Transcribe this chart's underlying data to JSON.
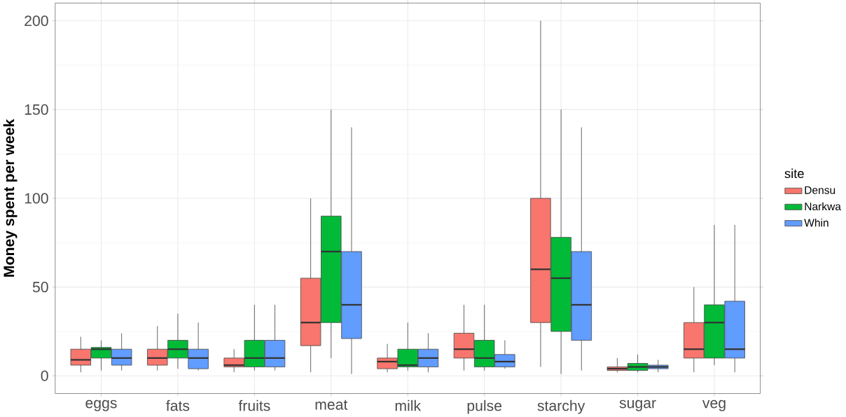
{
  "chart_data": {
    "type": "box",
    "xlabel": null,
    "ylabel": "Money spent per week",
    "legend_title": "site",
    "categories": [
      "eggs",
      "fats",
      "fruits",
      "meat",
      "milk",
      "pulse",
      "starchy",
      "sugar",
      "veg"
    ],
    "ylim": [
      -10,
      210
    ],
    "yticks": [
      0,
      50,
      100,
      150,
      200
    ],
    "grid": true,
    "legend": "right",
    "series": [
      {
        "name": "Densu",
        "color": "#f8766d",
        "boxes": [
          {
            "low": 2,
            "q1": 6,
            "median": 9,
            "q3": 15,
            "high": 22
          },
          {
            "low": 3,
            "q1": 6,
            "median": 10,
            "q3": 15,
            "high": 28
          },
          {
            "low": 2,
            "q1": 5,
            "median": 6,
            "q3": 10,
            "high": 15
          },
          {
            "low": 2,
            "q1": 17,
            "median": 30,
            "q3": 55,
            "high": 100
          },
          {
            "low": 2,
            "q1": 4,
            "median": 8,
            "q3": 10,
            "high": 18
          },
          {
            "low": 3,
            "q1": 10,
            "median": 15,
            "q3": 24,
            "high": 40
          },
          {
            "low": 5,
            "q1": 30,
            "median": 60,
            "q3": 100,
            "high": 200
          },
          {
            "low": 2,
            "q1": 3,
            "median": 4,
            "q3": 5,
            "high": 10
          },
          {
            "low": 2,
            "q1": 10,
            "median": 15,
            "q3": 30,
            "high": 50
          }
        ]
      },
      {
        "name": "Narkwa",
        "color": "#00ba38",
        "boxes": [
          {
            "low": 3,
            "q1": 10,
            "median": 15,
            "q3": 16,
            "high": 20
          },
          {
            "low": 4,
            "q1": 10,
            "median": 15,
            "q3": 20,
            "high": 35
          },
          {
            "low": 3,
            "q1": 5,
            "median": 10,
            "q3": 20,
            "high": 40
          },
          {
            "low": 10,
            "q1": 30,
            "median": 70,
            "q3": 90,
            "high": 150
          },
          {
            "low": 3,
            "q1": 5,
            "median": 6,
            "q3": 15,
            "high": 30
          },
          {
            "low": 3,
            "q1": 5,
            "median": 10,
            "q3": 20,
            "high": 40
          },
          {
            "low": 1,
            "q1": 25,
            "median": 55,
            "q3": 78,
            "high": 150
          },
          {
            "low": 2,
            "q1": 3,
            "median": 5,
            "q3": 7,
            "high": 12
          },
          {
            "low": 6,
            "q1": 10,
            "median": 30,
            "q3": 40,
            "high": 85
          }
        ]
      },
      {
        "name": "Whin",
        "color": "#619cff",
        "boxes": [
          {
            "low": 3,
            "q1": 6,
            "median": 10,
            "q3": 15,
            "high": 24
          },
          {
            "low": 3,
            "q1": 4,
            "median": 10,
            "q3": 15,
            "high": 30
          },
          {
            "low": 3,
            "q1": 5,
            "median": 10,
            "q3": 20,
            "high": 40
          },
          {
            "low": 1,
            "q1": 21,
            "median": 40,
            "q3": 70,
            "high": 140
          },
          {
            "low": 2,
            "q1": 5,
            "median": 10,
            "q3": 15,
            "high": 24
          },
          {
            "low": 4,
            "q1": 5,
            "median": 8,
            "q3": 12,
            "high": 20
          },
          {
            "low": 3,
            "q1": 20,
            "median": 40,
            "q3": 70,
            "high": 140
          },
          {
            "low": 2,
            "q1": 4,
            "median": 5,
            "q3": 6,
            "high": 9
          },
          {
            "low": 2,
            "q1": 10,
            "median": 15,
            "q3": 42,
            "high": 85
          }
        ]
      }
    ]
  }
}
